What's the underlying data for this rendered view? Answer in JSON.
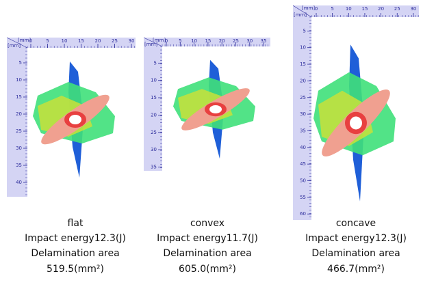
{
  "panels": [
    {
      "x_unit": "[mm]",
      "y_unit": "[mm]",
      "x_ticks": [
        0,
        5,
        10,
        15,
        20,
        25,
        30
      ],
      "y_ticks": [
        5,
        10,
        15,
        20,
        25,
        30,
        35,
        40
      ],
      "label": "flat",
      "energy": "Impact energy12.3(J)",
      "area_label": "Delamination area",
      "area": "519.5(mm²)"
    },
    {
      "x_unit": "[mm]",
      "y_unit": "[mm]",
      "x_ticks": [
        0,
        5,
        10,
        15,
        20,
        25,
        30,
        35
      ],
      "y_ticks": [
        5,
        10,
        15,
        20,
        25,
        30,
        35
      ],
      "label": "convex",
      "energy": "Impact energy11.7(J)",
      "area_label": "Delamination area",
      "area": "605.0(mm²)"
    },
    {
      "x_unit": "[mm]",
      "y_unit": "[mm]",
      "x_ticks": [
        0,
        5,
        10,
        15,
        20,
        25,
        30
      ],
      "y_ticks": [
        5,
        10,
        15,
        20,
        25,
        30,
        35,
        40,
        45,
        50,
        55,
        60
      ],
      "label": "concave",
      "energy": "Impact energy12.3(J)",
      "area_label": "Delamination area",
      "area": "466.7(mm²)"
    }
  ]
}
